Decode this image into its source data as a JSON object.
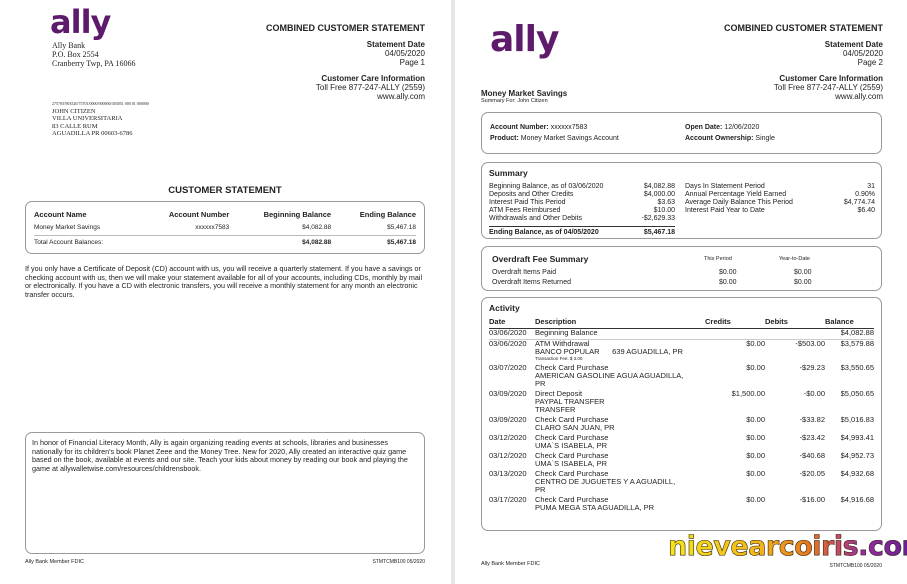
{
  "colors": {
    "brand": "#5e1a6b"
  },
  "page1": {
    "logo": "ally",
    "bank_address": [
      "Ally Bank",
      "P.O. Box 2554",
      "Cranberry Twp, PA 16066"
    ],
    "title": "COMBINED CUSTOMER STATEMENT",
    "statement_date_label": "Statement Date",
    "statement_date": "04/05/2020",
    "page": "Page 1",
    "care_label": "Customer Care Information",
    "toll_free": "Toll Free 877-247-ALLY (2559)",
    "website": "www.ally.com",
    "barcode_line": "27570/l/903520/75701/0000/000000/303051 000 01 000000",
    "customer_address": [
      "JOHN CITIZEN",
      "VILLA UNIVERSITARIA",
      "83 CALLE RUM",
      "AGUADILLA PR 00603-6786"
    ],
    "section_title": "CUSTOMER STATEMENT",
    "table": {
      "headers": [
        "Account Name",
        "Account Number",
        "Beginning Balance",
        "Ending Balance"
      ],
      "rows": [
        [
          "Money Market Savings",
          "xxxxxx7583",
          "$4,082.88",
          "$5,467.18"
        ]
      ],
      "total": [
        "Total Account Balances:",
        "$4,082.88",
        "$5,467.18"
      ]
    },
    "cd_notice": "If you only have a Certificate of Deposit (CD) account with us, you will receive a quarterly statement. If you have a savings or checking account with us, then we will make your statement available for all of your accounts, including CDs, monthly by mail or electronically. If you have a CD with electronic transfers, you will receive a monthly statement for any month an electronic transfer occurs.",
    "message": "In honor of Financial Literacy Month, Ally is again organizing reading events at schools, libraries and businesses nationally for its children's book Planet Zeee and the Money Tree. New for 2020, Ally created an interactive quiz game based on the book, available at events and our site. Teach your kids about money by reading our book and playing the game at allywalletwise.com/resources/childrensbook.",
    "footer_left": "Ally Bank Member FDIC",
    "footer_right": "STMTCMB100 05/2020"
  },
  "page2": {
    "logo": "ally",
    "title": "COMBINED CUSTOMER STATEMENT",
    "statement_date_label": "Statement Date",
    "statement_date": "04/05/2020",
    "page": "Page 2",
    "care_label": "Customer Care Information",
    "toll_free": "Toll Free 877-247-ALLY (2559)",
    "website": "www.ally.com",
    "account_title": "Money Market Savings",
    "summary_for": "Summary For: John Citizen",
    "info": {
      "account_number_label": "Account Number:",
      "account_number": "xxxxxx7583",
      "product_label": "Product:",
      "product": "Money Market Savings Account",
      "open_date_label": "Open Date:",
      "open_date": "12/06/2020",
      "ownership_label": "Account Ownership:",
      "ownership": "Single"
    },
    "summary": {
      "title": "Summary",
      "left": [
        [
          "Beginning Balance, as of 03/06/2020",
          "$4,082.88"
        ],
        [
          "Deposits and Other Credits",
          "$4,000.00"
        ],
        [
          "Interest Paid This Period",
          "$3.63"
        ],
        [
          "ATM Fees Reimbursed",
          "$10.00"
        ],
        [
          "Withdrawals and Other Debits",
          "-$2,629.33"
        ]
      ],
      "ending": [
        "Ending Balance, as of 04/05/2020",
        "$5,467.18"
      ],
      "right": [
        [
          "Days In Statement Period",
          "31"
        ],
        [
          "Annual Percentage Yield Earned",
          "0.90%"
        ],
        [
          "Average Daily Balance This Period",
          "$4,774.74"
        ],
        [
          "Interest Paid Year to Date",
          "$6.40"
        ]
      ]
    },
    "overdraft": {
      "title": "Overdraft Fee Summary",
      "col1": "This Period",
      "col2": "Year-to-Date",
      "rows": [
        [
          "Overdraft Items Paid",
          "$0.00",
          "$0.00"
        ],
        [
          "Overdraft Items Returned",
          "$0.00",
          "$0.00"
        ]
      ]
    },
    "activity": {
      "title": "Activity",
      "headers": [
        "Date",
        "Description",
        "Credits",
        "Debits",
        "Balance"
      ],
      "rows": [
        {
          "date": "03/06/2020",
          "desc": [
            "Beginning Balance"
          ],
          "credit": "",
          "debit": "",
          "balance": "$4,082.88"
        },
        {
          "date": "03/06/2020",
          "desc": [
            "ATM Withdrawal",
            "BANCO POPULAR      639 AGUADILLA, PR"
          ],
          "note": "Transaction Fee: $ 3.00",
          "credit": "$0.00",
          "debit": "-$503.00",
          "balance": "$3,579.88"
        },
        {
          "date": "03/07/2020",
          "desc": [
            "Check Card Purchase",
            "AMERICAN GASOLINE AGUA AGUADILLA,",
            "PR"
          ],
          "credit": "$0.00",
          "debit": "-$29.23",
          "balance": "$3,550.65"
        },
        {
          "date": "03/09/2020",
          "desc": [
            "Direct Deposit",
            "PAYPAL TRANSFER",
            "TRANSFER"
          ],
          "credit": "$1,500.00",
          "debit": "-$0.00",
          "balance": "$5,050.65"
        },
        {
          "date": "03/09/2020",
          "desc": [
            "Check Card Purchase",
            "CLARO SAN JUAN, PR"
          ],
          "credit": "$0.00",
          "debit": "-$33.82",
          "balance": "$5,016.83"
        },
        {
          "date": "03/12/2020",
          "desc": [
            "Check Card Purchase",
            "UMA`S ISABELA, PR"
          ],
          "credit": "$0.00",
          "debit": "-$23.42",
          "balance": "$4,993.41"
        },
        {
          "date": "03/12/2020",
          "desc": [
            "Check Card Purchase",
            "UMA`S ISABELA, PR"
          ],
          "credit": "$0.00",
          "debit": "-$40.68",
          "balance": "$4,952.73"
        },
        {
          "date": "03/13/2020",
          "desc": [
            "Check Card Purchase",
            "CENTRO DE JUGUETES Y A AGUADILL,",
            "PR"
          ],
          "credit": "$0.00",
          "debit": "-$20.05",
          "balance": "$4,932.68"
        },
        {
          "date": "03/17/2020",
          "desc": [
            "Check Card Purchase",
            "PUMA MEGA STA AGUADILLA, PR"
          ],
          "credit": "$0.00",
          "debit": "-$16.00",
          "balance": "$4,916.68"
        }
      ]
    },
    "watermark": "nievearcoiris.com",
    "footer_left": "Ally Bank Member FDIC",
    "footer_right": "STMTCMB100 05/2020"
  }
}
